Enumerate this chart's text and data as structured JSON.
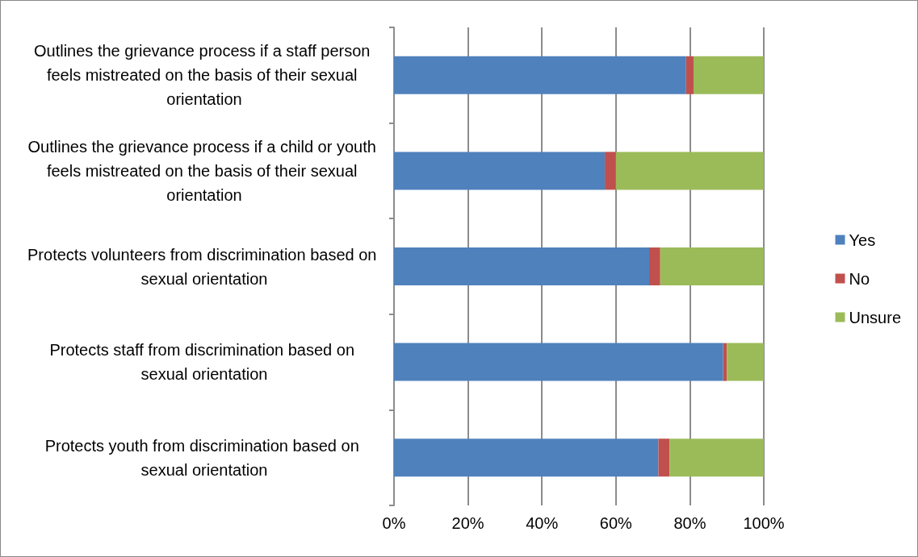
{
  "chart_data": {
    "type": "bar",
    "orientation": "horizontal",
    "stacked": true,
    "categories": [
      "Outlines the grievance process if a staff person feels mistreated on the basis of their sexual orientation",
      "Outlines the grievance process if a child or youth feels mistreated on the basis of their sexual orientation",
      "Protects volunteers from discrimination based on sexual orientation",
      "Protects staff from discrimination based on sexual orientation",
      "Protects youth from discrimination based on sexual orientation"
    ],
    "series": [
      {
        "name": "Yes",
        "color": "#4f81bd",
        "values": [
          79,
          57,
          69,
          89,
          71.5
        ]
      },
      {
        "name": "No",
        "color": "#c0504d",
        "values": [
          2,
          3,
          3,
          1,
          3
        ]
      },
      {
        "name": "Unsure",
        "color": "#9bbb59",
        "values": [
          19,
          40,
          28,
          10,
          25.5
        ]
      }
    ],
    "xlim": [
      0,
      100
    ],
    "xticks": [
      {
        "value": 0,
        "label": "0%"
      },
      {
        "value": 20,
        "label": "20%"
      },
      {
        "value": 40,
        "label": "40%"
      },
      {
        "value": 60,
        "label": "60%"
      },
      {
        "value": 80,
        "label": "80%"
      },
      {
        "value": 100,
        "label": "100%"
      }
    ],
    "grid": "x",
    "legend": "right"
  }
}
